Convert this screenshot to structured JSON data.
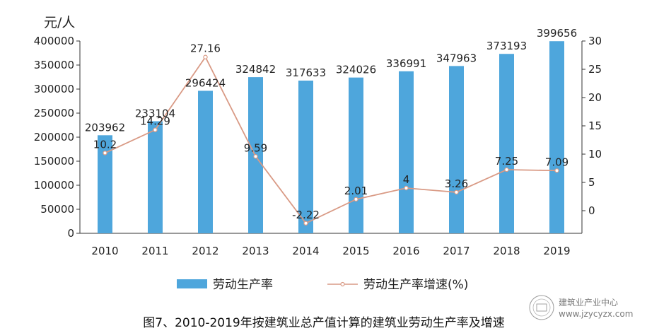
{
  "chart_data": {
    "type": "bar+line",
    "categories": [
      "2010",
      "2011",
      "2012",
      "2013",
      "2014",
      "2015",
      "2016",
      "2017",
      "2018",
      "2019"
    ],
    "series": [
      {
        "name": "劳动生产率",
        "type": "bar",
        "axis": "left",
        "color": "#4ea6dc",
        "values": [
          203962,
          233104,
          296424,
          324842,
          317633,
          324026,
          336991,
          347963,
          373193,
          399656
        ]
      },
      {
        "name": "劳动生产率增速(%)",
        "type": "line",
        "axis": "right",
        "color": "#d99a85",
        "values": [
          10.2,
          14.29,
          27.16,
          9.59,
          -2.22,
          2.01,
          4,
          3.26,
          7.25,
          7.09
        ]
      }
    ],
    "left_axis": {
      "unit": "元/人",
      "ylim": [
        0,
        400000
      ],
      "ticks": [
        0,
        50000,
        100000,
        150000,
        200000,
        250000,
        300000,
        350000,
        400000
      ]
    },
    "right_axis": {
      "ylim": [
        -4,
        30
      ],
      "ticks": [
        0,
        5,
        10,
        15,
        20,
        25,
        30
      ]
    },
    "legend_position": "bottom",
    "caption": "图7、2010-2019年按建筑业总产值计算的建筑业劳动生产率及增速"
  },
  "watermark": {
    "line1": "建筑业产业中心",
    "line2": "www.jzycyzx.com"
  }
}
